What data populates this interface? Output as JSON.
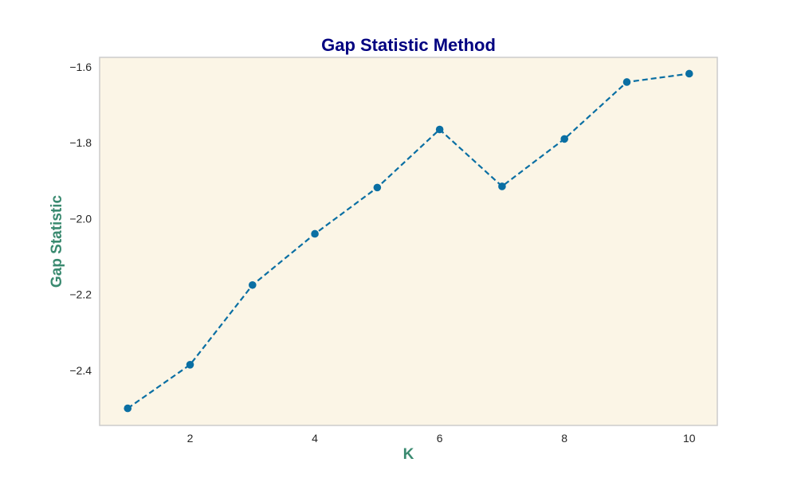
{
  "chart_data": {
    "type": "line",
    "title": "Gap Statistic Method",
    "xlabel": "K",
    "ylabel": "Gap Statistic",
    "x": [
      1,
      2,
      3,
      4,
      5,
      6,
      7,
      8,
      9,
      10
    ],
    "series": [
      {
        "values": [
          -2.5,
          -2.385,
          -2.175,
          -2.04,
          -1.918,
          -1.765,
          -1.915,
          -1.79,
          -1.64,
          -1.618
        ]
      }
    ],
    "x_ticks": [
      "2",
      "4",
      "6",
      "8",
      "10"
    ],
    "y_ticks": [
      "−1.6",
      "−1.8",
      "−2.0",
      "−2.2",
      "−2.4"
    ],
    "xlim": [
      0.55,
      10.45
    ],
    "ylim": [
      -2.545,
      -1.575
    ],
    "grid": false,
    "line_style": "dashed",
    "marker": "circle",
    "colors": {
      "line": "#0a6fa3",
      "plot_background": "#fbf5e6",
      "plot_border": "#cccccc",
      "title": "#000080",
      "axis_label": "#3a8a70"
    }
  }
}
